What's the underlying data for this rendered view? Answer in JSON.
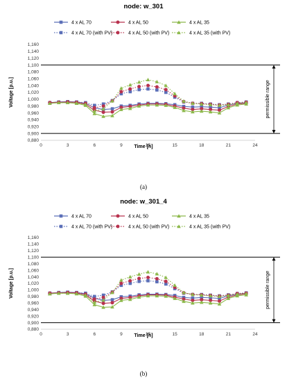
{
  "chart_data": [
    {
      "type": "line",
      "caption": "(a)",
      "title": "node: w_301",
      "xlabel": "Time [h]",
      "ylabel": "Voltage [p.u.]",
      "xlim": [
        0,
        24
      ],
      "xticks": [
        0,
        3,
        6,
        9,
        12,
        15,
        18,
        21,
        24
      ],
      "ylim": [
        0.88,
        1.16
      ],
      "yticks": [
        "0,880",
        "0,900",
        "0,920",
        "0,940",
        "0,960",
        "0,980",
        "1,000",
        "1,020",
        "1,040",
        "1,060",
        "1,080",
        "1,100",
        "1,120",
        "1,140",
        "1,160"
      ],
      "limits": [
        0.9,
        1.1
      ],
      "range_label": "permissible range",
      "legend_position": "top",
      "x": [
        1,
        2,
        3,
        4,
        5,
        6,
        7,
        8,
        9,
        10,
        11,
        12,
        13,
        14,
        15,
        16,
        17,
        18,
        19,
        20,
        21,
        22,
        23
      ],
      "series": [
        {
          "name": "4 x AL 70",
          "color": "#5b6fb8",
          "marker": "square",
          "dash": false,
          "values": [
            0.99,
            0.992,
            0.993,
            0.992,
            0.988,
            0.975,
            0.97,
            0.972,
            0.98,
            0.982,
            0.986,
            0.988,
            0.988,
            0.987,
            0.984,
            0.979,
            0.977,
            0.978,
            0.977,
            0.975,
            0.983,
            0.988,
            0.99
          ]
        },
        {
          "name": "4 x AL 50",
          "color": "#b8324e",
          "marker": "circle",
          "dash": false,
          "values": [
            0.99,
            0.991,
            0.992,
            0.991,
            0.985,
            0.968,
            0.962,
            0.963,
            0.976,
            0.979,
            0.983,
            0.986,
            0.986,
            0.985,
            0.98,
            0.974,
            0.97,
            0.972,
            0.97,
            0.968,
            0.979,
            0.986,
            0.988
          ]
        },
        {
          "name": "4 x AL 35",
          "color": "#8cb84a",
          "marker": "triangle",
          "dash": false,
          "values": [
            0.988,
            0.99,
            0.99,
            0.988,
            0.982,
            0.958,
            0.95,
            0.952,
            0.97,
            0.973,
            0.98,
            0.983,
            0.983,
            0.982,
            0.976,
            0.967,
            0.963,
            0.965,
            0.963,
            0.96,
            0.975,
            0.983,
            0.986
          ]
        },
        {
          "name": "4 x AL 70 (with PV)",
          "color": "#5b6fb8",
          "marker": "square",
          "dash": true,
          "values": [
            0.99,
            0.992,
            0.993,
            0.992,
            0.99,
            0.982,
            0.986,
            0.996,
            1.016,
            1.022,
            1.028,
            1.03,
            1.027,
            1.02,
            1.006,
            0.992,
            0.988,
            0.988,
            0.986,
            0.984,
            0.986,
            0.99,
            0.992
          ]
        },
        {
          "name": "4 x AL 50 (with PV)",
          "color": "#b8324e",
          "marker": "circle",
          "dash": true,
          "values": [
            0.99,
            0.991,
            0.992,
            0.991,
            0.988,
            0.975,
            0.98,
            0.995,
            1.022,
            1.03,
            1.037,
            1.04,
            1.036,
            1.028,
            1.01,
            0.993,
            0.988,
            0.987,
            0.985,
            0.983,
            0.985,
            0.99,
            0.991
          ]
        },
        {
          "name": "4 x AL 35 (with PV)",
          "color": "#8cb84a",
          "marker": "triangle",
          "dash": true,
          "values": [
            0.988,
            0.99,
            0.99,
            0.989,
            0.985,
            0.965,
            0.972,
            0.995,
            1.032,
            1.042,
            1.05,
            1.057,
            1.051,
            1.04,
            1.016,
            0.994,
            0.988,
            0.986,
            0.984,
            0.982,
            0.984,
            0.988,
            0.99
          ]
        }
      ]
    },
    {
      "type": "line",
      "caption": "(b)",
      "title": "node: w_301_4",
      "xlabel": "Time [h]",
      "ylabel": "Voltage [p.u.]",
      "xlim": [
        0,
        24
      ],
      "xticks": [
        0,
        3,
        6,
        9,
        12,
        15,
        18,
        21,
        24
      ],
      "ylim": [
        0.88,
        1.16
      ],
      "yticks": [
        "0,880",
        "0,900",
        "0,920",
        "0,940",
        "0,960",
        "0,980",
        "1,000",
        "1,020",
        "1,040",
        "1,060",
        "1,080",
        "1,100",
        "1,120",
        "1,140",
        "1,160"
      ],
      "limits": [
        0.9,
        1.1
      ],
      "range_label": "permissible range",
      "legend_position": "top",
      "x": [
        1,
        2,
        3,
        4,
        5,
        6,
        7,
        8,
        9,
        10,
        11,
        12,
        13,
        14,
        15,
        16,
        17,
        18,
        19,
        20,
        21,
        22,
        23
      ],
      "series": [
        {
          "name": "4 x AL 70",
          "color": "#5b6fb8",
          "marker": "square",
          "dash": false,
          "values": [
            0.99,
            0.992,
            0.993,
            0.992,
            0.988,
            0.975,
            0.968,
            0.97,
            0.979,
            0.981,
            0.985,
            0.987,
            0.987,
            0.986,
            0.983,
            0.977,
            0.975,
            0.977,
            0.976,
            0.974,
            0.982,
            0.987,
            0.99
          ]
        },
        {
          "name": "4 x AL 50",
          "color": "#b8324e",
          "marker": "circle",
          "dash": false,
          "values": [
            0.99,
            0.991,
            0.992,
            0.991,
            0.985,
            0.966,
            0.959,
            0.961,
            0.974,
            0.977,
            0.982,
            0.985,
            0.985,
            0.984,
            0.978,
            0.972,
            0.968,
            0.97,
            0.968,
            0.966,
            0.978,
            0.985,
            0.988
          ]
        },
        {
          "name": "4 x AL 35",
          "color": "#8cb84a",
          "marker": "triangle",
          "dash": false,
          "values": [
            0.988,
            0.99,
            0.99,
            0.988,
            0.981,
            0.955,
            0.947,
            0.948,
            0.968,
            0.971,
            0.978,
            0.982,
            0.982,
            0.981,
            0.974,
            0.965,
            0.96,
            0.962,
            0.96,
            0.957,
            0.974,
            0.982,
            0.985
          ]
        },
        {
          "name": "4 x AL 70 (with PV)",
          "color": "#5b6fb8",
          "marker": "square",
          "dash": true,
          "values": [
            0.99,
            0.992,
            0.993,
            0.992,
            0.99,
            0.98,
            0.984,
            0.994,
            1.014,
            1.02,
            1.026,
            1.028,
            1.025,
            1.018,
            1.004,
            0.99,
            0.986,
            0.986,
            0.984,
            0.982,
            0.985,
            0.989,
            0.991
          ]
        },
        {
          "name": "4 x AL 50 (with PV)",
          "color": "#b8324e",
          "marker": "circle",
          "dash": true,
          "values": [
            0.99,
            0.991,
            0.992,
            0.991,
            0.987,
            0.972,
            0.977,
            0.993,
            1.02,
            1.028,
            1.035,
            1.038,
            1.034,
            1.026,
            1.008,
            0.991,
            0.986,
            0.985,
            0.983,
            0.981,
            0.984,
            0.989,
            0.99
          ]
        },
        {
          "name": "4 x AL 35 (with PV)",
          "color": "#8cb84a",
          "marker": "triangle",
          "dash": true,
          "values": [
            0.988,
            0.99,
            0.99,
            0.989,
            0.984,
            0.962,
            0.969,
            0.992,
            1.03,
            1.04,
            1.048,
            1.055,
            1.049,
            1.038,
            1.014,
            0.992,
            0.986,
            0.984,
            0.982,
            0.98,
            0.983,
            0.987,
            0.989
          ]
        }
      ]
    }
  ]
}
